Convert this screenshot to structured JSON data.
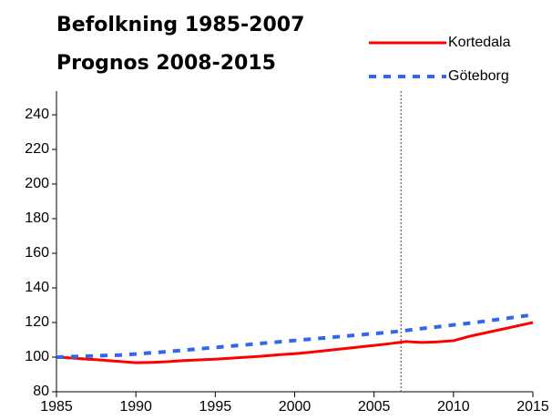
{
  "chart_data": {
    "type": "line",
    "title": [
      "Befolkning 1985-2007",
      "Prognos 2008-2015"
    ],
    "x": [
      1985,
      1986,
      1987,
      1988,
      1989,
      1990,
      1991,
      1992,
      1993,
      1994,
      1995,
      1996,
      1997,
      1998,
      1999,
      2000,
      2001,
      2002,
      2003,
      2004,
      2005,
      2006,
      2007,
      2008,
      2009,
      2010,
      2011,
      2012,
      2013,
      2014,
      2015
    ],
    "series": [
      {
        "name": "Kortedala",
        "color": "#ff0000",
        "dashed": false,
        "values": [
          100,
          99.5,
          98.8,
          98.2,
          97.5,
          96.8,
          97,
          97.4,
          98,
          98.4,
          98.8,
          99.4,
          100,
          100.6,
          101.4,
          102,
          102.8,
          103.8,
          104.8,
          105.8,
          106.8,
          107.8,
          109,
          108.5,
          108.8,
          109.5,
          112,
          114,
          116,
          118,
          120
        ]
      },
      {
        "name": "Göteborg",
        "color": "#3366ee",
        "dashed": true,
        "values": [
          100,
          100.3,
          100.6,
          100.9,
          101.2,
          101.8,
          102.5,
          103.2,
          104,
          104.8,
          105.6,
          106.4,
          107.2,
          108,
          108.8,
          109.6,
          110.4,
          111.2,
          112,
          112.8,
          113.6,
          114.4,
          115.4,
          116.5,
          117.5,
          118.6,
          119.6,
          120.8,
          122,
          123.2,
          124.5
        ]
      }
    ],
    "xlim": [
      1985,
      2015
    ],
    "xticks": [
      1985,
      1990,
      1995,
      2000,
      2005,
      2010,
      2015
    ],
    "ylim": [
      80,
      250
    ],
    "yticks": [
      80,
      100,
      120,
      140,
      160,
      180,
      200,
      220,
      240
    ],
    "reference_line_x": 2006.7,
    "grid": false,
    "legend": "upper right"
  }
}
